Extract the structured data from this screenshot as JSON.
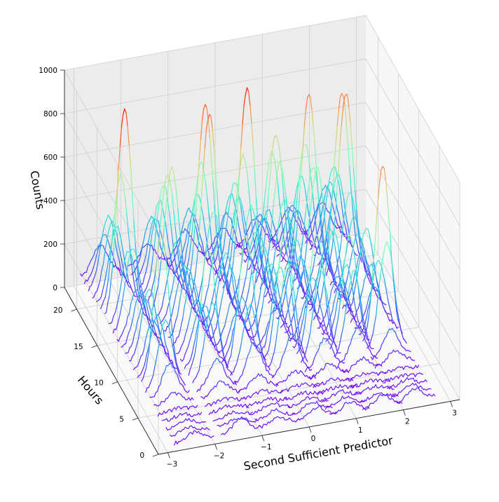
{
  "chart_data": {
    "type": "line",
    "projection": "3d",
    "xlabel": "Second Sufficient Predictor",
    "ylabel": "Hours",
    "zlabel": "Counts",
    "xticks": [
      "−3",
      "−2",
      "−1",
      "0",
      "1",
      "2",
      "3"
    ],
    "yticks": [
      "0",
      "5",
      "10",
      "15",
      "20"
    ],
    "zticks": [
      "0",
      "200",
      "400",
      "600",
      "800",
      "1000"
    ],
    "xlim": [
      -3.2,
      3.2
    ],
    "ylim": [
      0,
      23
    ],
    "zlim": [
      0,
      1000
    ],
    "grid": true,
    "colormap": "rainbow",
    "colormap_stops": [
      "#8000ff",
      "#2b7ef8",
      "#2adddd",
      "#80ffb4",
      "#d4dd80",
      "#ff7f41",
      "#ff0000"
    ],
    "series_description": "one count curve per hour (0-23) across the predictor; color encodes count level",
    "hour_peak_counts": [
      60,
      40,
      30,
      20,
      20,
      60,
      200,
      520,
      880,
      480,
      300,
      380,
      420,
      400,
      380,
      400,
      580,
      960,
      900,
      620,
      440,
      340,
      260,
      160
    ],
    "peak_centers": [
      -2.4,
      -1.4,
      -0.6,
      0.2,
      0.9,
      1.6,
      2.3
    ]
  }
}
